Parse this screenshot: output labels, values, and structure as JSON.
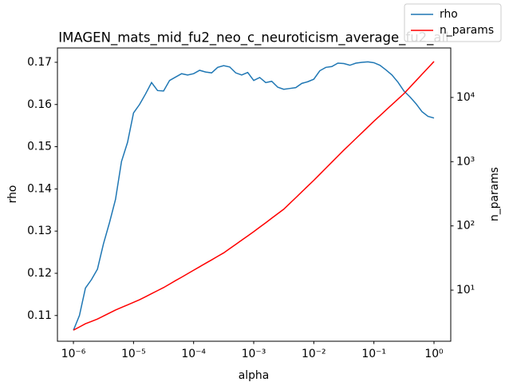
{
  "chart_data": {
    "type": "line",
    "title": "IMAGEN_mats_mid_fu2_neo_c_neuroticism_average_fu2_all",
    "xlabel": "alpha",
    "ylabel": "rho",
    "y2label": "n_params",
    "xscale": "log",
    "y2scale": "log",
    "xlim": [
      5.42e-07,
      1.9
    ],
    "ylim": [
      0.1039,
      0.1734
    ],
    "y2lim": [
      1.6,
      59000
    ],
    "xticks": [
      {
        "value": 1e-06,
        "label": "10⁻⁶"
      },
      {
        "value": 1e-05,
        "label": "10⁻⁵"
      },
      {
        "value": 0.0001,
        "label": "10⁻⁴"
      },
      {
        "value": 0.001,
        "label": "10⁻³"
      },
      {
        "value": 0.01,
        "label": "10⁻²"
      },
      {
        "value": 0.1,
        "label": "10⁻¹"
      },
      {
        "value": 1,
        "label": "10⁰"
      }
    ],
    "yticks": [
      0.11,
      0.12,
      0.13,
      0.14,
      0.15,
      0.16,
      0.17
    ],
    "y2ticks": [
      {
        "value": 10,
        "label": "10¹"
      },
      {
        "value": 100,
        "label": "10²"
      },
      {
        "value": 1000,
        "label": "10³"
      },
      {
        "value": 10000,
        "label": "10⁴"
      }
    ],
    "legend": "upper right",
    "x": [
      1e-06,
      1.259e-06,
      1.585e-06,
      1.995e-06,
      2.512e-06,
      3.162e-06,
      3.981e-06,
      5.012e-06,
      6.31e-06,
      7.943e-06,
      1e-05,
      1.259e-05,
      1.585e-05,
      1.995e-05,
      2.512e-05,
      3.162e-05,
      3.981e-05,
      5.012e-05,
      6.31e-05,
      7.943e-05,
      0.0001,
      0.0001259,
      0.0001585,
      0.0001995,
      0.0002512,
      0.0003162,
      0.0003981,
      0.0005012,
      0.000631,
      0.0007943,
      0.001,
      0.001259,
      0.001585,
      0.001995,
      0.002512,
      0.003162,
      0.003981,
      0.005012,
      0.00631,
      0.007943,
      0.01,
      0.01259,
      0.01585,
      0.01995,
      0.02512,
      0.03162,
      0.03981,
      0.05012,
      0.0631,
      0.07943,
      0.1,
      0.1259,
      0.1585,
      0.1995,
      0.2512,
      0.3162,
      0.3981,
      0.5012,
      0.631,
      0.7943,
      1
    ],
    "series": [
      {
        "name": "rho",
        "color": "#1f77b4",
        "values": [
          0.1065,
          0.11,
          0.1165,
          0.1185,
          0.121,
          0.127,
          0.132,
          0.1375,
          0.1465,
          0.151,
          0.158,
          0.16,
          0.1625,
          0.1652,
          0.1633,
          0.1632,
          0.1657,
          0.1665,
          0.1673,
          0.167,
          0.1673,
          0.1681,
          0.1677,
          0.1675,
          0.1688,
          0.1692,
          0.1689,
          0.1675,
          0.167,
          0.1676,
          0.1657,
          0.1664,
          0.1652,
          0.1655,
          0.1641,
          0.1636,
          0.1638,
          0.164,
          0.165,
          0.1654,
          0.166,
          0.168,
          0.1688,
          0.169,
          0.1698,
          0.1697,
          0.1693,
          0.1698,
          0.17,
          0.1701,
          0.1699,
          0.1693,
          0.1682,
          0.167,
          0.1653,
          0.1632,
          0.1618,
          0.1602,
          0.1583,
          0.1572,
          0.1568
        ]
      },
      {
        "name": "n_params",
        "color": "#ff0000",
        "axis": "y2",
        "values": [
          2.38,
          2.67,
          3.0,
          3.26,
          3.55,
          3.95,
          4.4,
          4.9,
          5.37,
          5.89,
          6.46,
          7.08,
          7.9,
          8.81,
          9.83,
          10.96,
          12.4,
          14.1,
          15.9,
          18.0,
          20.4,
          23.1,
          26.2,
          29.6,
          33.6,
          38.0,
          44.3,
          51.5,
          60.0,
          69.8,
          81.3,
          95.5,
          112,
          132,
          155,
          182,
          224,
          275,
          339,
          417,
          513,
          637,
          791,
          982,
          1219,
          1514,
          1862,
          2291,
          2818,
          3467,
          4266,
          5200,
          6339,
          7727,
          9419,
          11482,
          14454,
          18197,
          22909,
          28840,
          36308
        ]
      }
    ]
  }
}
